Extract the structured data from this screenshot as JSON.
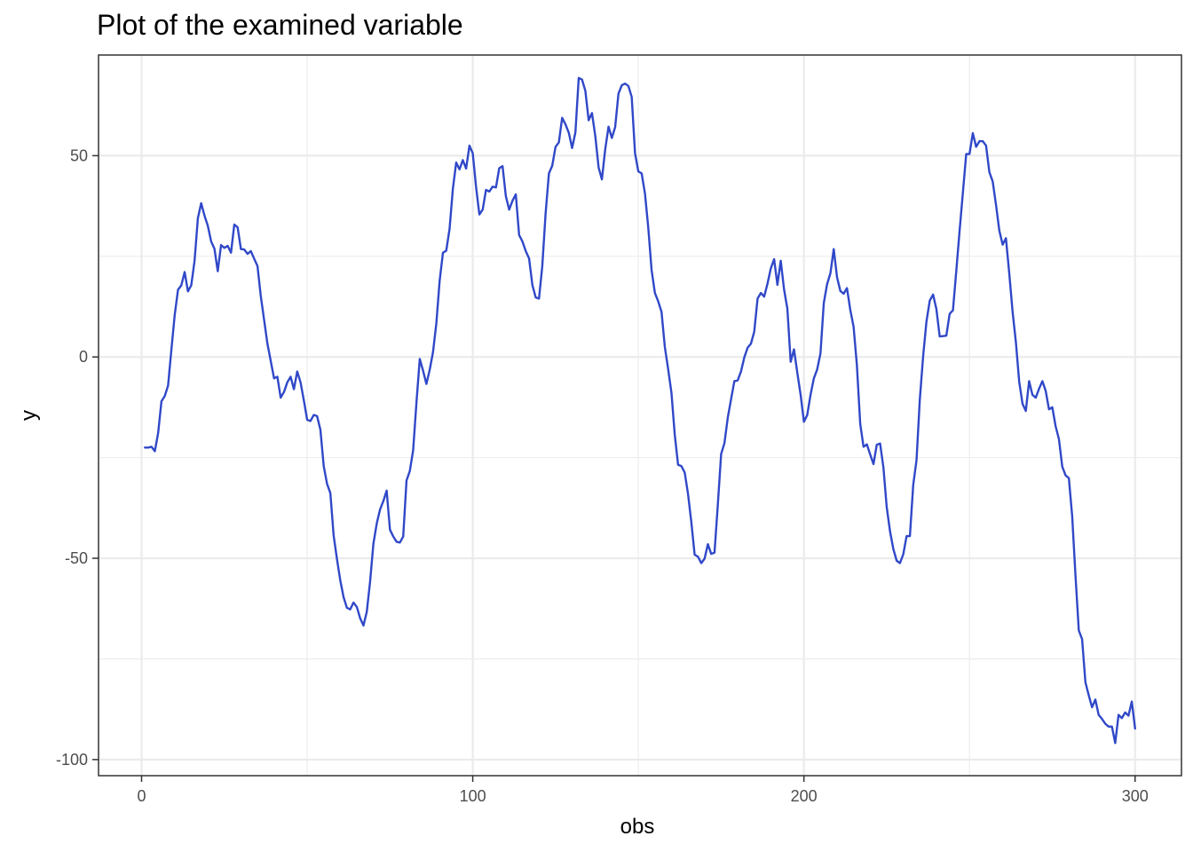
{
  "chart_data": {
    "type": "line",
    "title": "Plot of the examined variable",
    "xlabel": "obs",
    "ylabel": "y",
    "xlim": [
      -13,
      314
    ],
    "ylim": [
      -104,
      75
    ],
    "xticks": [
      0,
      100,
      200,
      300
    ],
    "yticks": [
      -100,
      -50,
      0,
      50
    ],
    "xtick_labels": [
      "0",
      "100",
      "200",
      "300"
    ],
    "ytick_labels": [
      "-100",
      "-50",
      "0",
      "50"
    ],
    "xminor": [
      50,
      150,
      250
    ],
    "yminor": [
      -75,
      -25,
      25,
      75
    ],
    "grid": true,
    "line_color": "#3048C8",
    "series": [
      {
        "x": [
          1,
          2,
          3,
          4,
          5,
          6,
          7,
          8,
          9,
          10,
          11,
          12,
          13,
          14,
          15,
          16,
          17,
          18,
          19,
          20,
          21,
          22,
          23,
          24,
          25,
          26,
          27,
          28,
          29,
          30,
          31,
          32,
          33,
          34,
          35,
          36,
          37,
          38,
          39,
          40,
          41,
          42,
          43,
          44,
          45,
          46,
          47,
          48,
          49,
          50,
          51,
          52,
          53,
          54,
          55,
          56,
          57,
          58,
          59,
          60,
          61,
          62,
          63,
          64,
          65,
          66,
          67,
          68,
          69,
          70,
          71,
          72,
          73,
          74,
          75,
          76,
          77,
          78,
          79,
          80,
          81,
          82,
          83,
          84,
          85,
          86,
          87,
          88,
          89,
          90,
          91,
          92,
          93,
          94,
          95,
          96,
          97,
          98,
          99,
          100,
          101,
          102,
          103,
          104,
          105,
          106,
          107,
          108,
          109,
          110,
          111,
          112,
          113,
          114,
          115,
          116,
          117,
          118,
          119,
          120,
          121,
          122,
          123,
          124,
          125,
          126,
          127,
          128,
          129,
          130,
          131,
          132,
          133,
          134,
          135,
          136,
          137,
          138,
          139,
          140,
          141,
          142,
          143,
          144,
          145,
          146,
          147,
          148,
          149,
          150,
          151,
          152,
          153,
          154,
          155,
          156,
          157,
          158,
          159,
          160,
          161,
          162,
          163,
          164,
          165,
          166,
          167,
          168,
          169,
          170,
          171,
          172,
          173,
          174,
          175,
          176,
          177,
          178,
          179,
          180,
          181,
          182,
          183,
          184,
          185,
          186,
          187,
          188,
          189,
          190,
          191,
          192,
          193,
          194,
          195,
          196,
          197,
          198,
          199,
          200,
          201,
          202,
          203,
          204,
          205,
          206,
          207,
          208,
          209,
          210,
          211,
          212,
          213,
          214,
          215,
          216,
          217,
          218,
          219,
          220,
          221,
          222,
          223,
          224,
          225,
          226,
          227,
          228,
          229,
          230,
          231,
          232,
          233,
          234,
          235,
          236,
          237,
          238,
          239,
          240,
          241,
          242,
          243,
          244,
          245,
          246,
          247,
          248,
          249,
          250,
          251,
          252,
          253,
          254,
          255,
          256,
          257,
          258,
          259,
          260,
          261,
          262,
          263,
          264,
          265,
          266,
          267,
          268,
          269,
          270,
          271,
          272,
          273,
          274,
          275,
          276,
          277,
          278,
          279,
          280,
          281,
          282,
          283,
          284,
          285,
          286,
          287,
          288,
          289,
          290,
          291,
          292,
          293,
          294,
          295,
          296,
          297,
          298,
          299,
          300
        ],
        "y": [
          -22.5,
          -22.5,
          -22.3,
          -23.4,
          -18.9,
          -11,
          -9.7,
          -7.1,
          1.8,
          10.4,
          16.7,
          17.8,
          21.1,
          16.3,
          17.8,
          23.9,
          34.5,
          38.2,
          35.1,
          32.6,
          28.7,
          26.9,
          21.3,
          27.8,
          27.1,
          27.6,
          25.9,
          32.9,
          32.2,
          26.8,
          26.7,
          25.6,
          26.3,
          24.4,
          22.6,
          15.1,
          9.2,
          3.3,
          -1,
          -5.3,
          -4.9,
          -10.1,
          -8.7,
          -6.3,
          -4.9,
          -8,
          -3.6,
          -6.3,
          -10.8,
          -15.6,
          -15.9,
          -14.4,
          -14.7,
          -18.1,
          -27.1,
          -31.5,
          -33.8,
          -44.4,
          -50.2,
          -55.5,
          -59.7,
          -62.3,
          -62.7,
          -61,
          -62.1,
          -64.9,
          -66.7,
          -63.3,
          -55.8,
          -46.4,
          -41.4,
          -37.9,
          -35.8,
          -33.2,
          -42.9,
          -44.6,
          -45.9,
          -46.1,
          -44.6,
          -30.7,
          -28.3,
          -23.2,
          -11.3,
          -0.5,
          -3.4,
          -6.7,
          -3.2,
          1.2,
          8.3,
          18.9,
          25.9,
          26.4,
          31.8,
          41.8,
          48.3,
          46.6,
          48.9,
          46.8,
          52.5,
          50.6,
          42.2,
          35.4,
          36.6,
          41.5,
          41.1,
          42.3,
          42.1,
          46.9,
          47.4,
          39.9,
          36.6,
          38.8,
          40.4,
          30.3,
          28.7,
          26.3,
          24.5,
          17.9,
          14.8,
          14.5,
          22.6,
          35.7,
          45.6,
          47.5,
          52.2,
          53.3,
          59.4,
          57.8,
          55.7,
          51.9,
          55.8,
          69.3,
          68.9,
          66.1,
          58.8,
          60.6,
          54.9,
          47.1,
          44.1,
          51.6,
          57.2,
          54.4,
          57.1,
          65.4,
          67.5,
          67.9,
          67.3,
          64.6,
          50.6,
          46.1,
          45.6,
          40.6,
          32.1,
          21.6,
          15.9,
          13.8,
          11.2,
          2.5,
          -3,
          -8.9,
          -19.3,
          -26.8,
          -27.1,
          -28.7,
          -34,
          -41,
          -49.1,
          -49.6,
          -51.2,
          -50.1,
          -46.5,
          -48.9,
          -48.6,
          -36.7,
          -24.1,
          -21.4,
          -15.1,
          -10.5,
          -6,
          -5.8,
          -3.6,
          -0.1,
          2.3,
          3.3,
          6.3,
          14.5,
          15.9,
          15,
          18.2,
          22,
          24.3,
          17.9,
          23.9,
          16.8,
          12,
          -1.2,
          1.9,
          -3.9,
          -9.4,
          -16.1,
          -14.4,
          -9.4,
          -5.3,
          -3.1,
          0.9,
          13.4,
          18.1,
          20.8,
          26.8,
          19.8,
          16.4,
          15.7,
          17.1,
          11.7,
          7.5,
          -2.1,
          -16.6,
          -22.3,
          -21.7,
          -24.2,
          -26.6,
          -21.8,
          -21.5,
          -27.4,
          -37.3,
          -43.3,
          -47.7,
          -50.6,
          -51.2,
          -49,
          -44.5,
          -44.5,
          -31.8,
          -25.6,
          -10.5,
          0.2,
          8.8,
          14,
          15.5,
          11.9,
          5.1,
          5.2,
          5.3,
          10.7,
          11.6,
          21.3,
          31.3,
          40.8,
          50.4,
          50.4,
          55.6,
          52.2,
          53.6,
          53.6,
          52.5,
          45.9,
          43.6,
          37.8,
          31.4,
          27.9,
          29.5,
          20.8,
          11.3,
          3.7,
          -6.1,
          -11.6,
          -13.4,
          -6,
          -9.4,
          -10.1,
          -7.9,
          -6,
          -8.4,
          -13,
          -12.5,
          -17.2,
          -20.4,
          -27.2,
          -29.4,
          -30.1,
          -39.5,
          -54.3,
          -67.9,
          -70.1,
          -80.8,
          -84,
          -87,
          -85.1,
          -88.9,
          -89.9,
          -91.1,
          -91.8,
          -91.8,
          -95.9,
          -88.9,
          -89.7,
          -88.3,
          -89.1,
          -85.6,
          -92.3
        ]
      }
    ]
  }
}
